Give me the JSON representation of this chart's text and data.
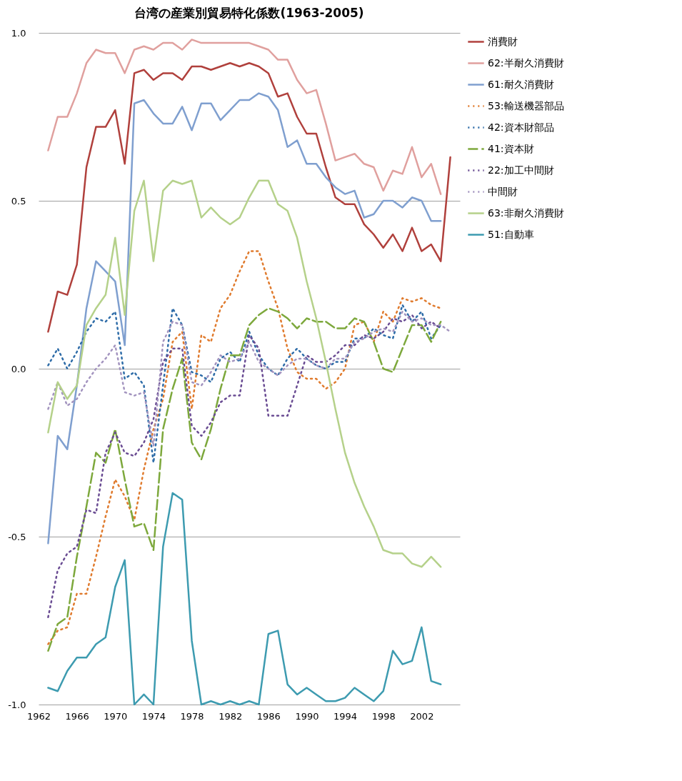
{
  "chart_data": {
    "type": "line",
    "title": "台湾の産業別貿易特化係数(1963-2005)",
    "x": [
      1963,
      1964,
      1965,
      1966,
      1967,
      1968,
      1969,
      1970,
      1971,
      1972,
      1973,
      1974,
      1975,
      1976,
      1977,
      1978,
      1979,
      1980,
      1981,
      1982,
      1983,
      1984,
      1985,
      1986,
      1987,
      1988,
      1989,
      1990,
      1991,
      1992,
      1993,
      1994,
      1995,
      1996,
      1997,
      1998,
      1999,
      2000,
      2001,
      2002,
      2003,
      2004,
      2005
    ],
    "xlim": [
      1962,
      2006
    ],
    "xticks": [
      1962,
      1966,
      1970,
      1974,
      1978,
      1982,
      1986,
      1990,
      1994,
      1998,
      2002
    ],
    "ylim": [
      -1,
      1
    ],
    "yticks": [
      {
        "value": -1,
        "label": "-1.0"
      },
      {
        "value": -0.5,
        "label": "-0.5"
      },
      {
        "value": 0,
        "label": "0.0"
      },
      {
        "value": 0.5,
        "label": "0.5"
      },
      {
        "value": 1,
        "label": "1.0"
      }
    ],
    "grid": "y",
    "legend": "right",
    "marker": "none",
    "series": [
      {
        "name": "消費財",
        "color": "#b0403c",
        "line_style": "solid",
        "values": [
          0.11,
          0.23,
          0.22,
          0.31,
          0.6,
          0.72,
          0.72,
          0.77,
          0.61,
          0.88,
          0.89,
          0.86,
          0.88,
          0.88,
          0.86,
          0.9,
          0.9,
          0.89,
          0.9,
          0.91,
          0.9,
          0.91,
          0.9,
          0.88,
          0.81,
          0.82,
          0.75,
          0.7,
          0.7,
          0.6,
          0.51,
          0.49,
          0.49,
          0.43,
          0.4,
          0.36,
          0.4,
          0.35,
          0.42,
          0.35,
          0.37,
          0.32,
          0.63
        ]
      },
      {
        "name": "62:半耐久消費財",
        "color": "#e0a09e",
        "line_style": "solid",
        "values": [
          0.65,
          0.75,
          0.75,
          0.82,
          0.91,
          0.95,
          0.94,
          0.94,
          0.88,
          0.95,
          0.96,
          0.95,
          0.97,
          0.97,
          0.95,
          0.98,
          0.97,
          0.97,
          0.97,
          0.97,
          0.97,
          0.97,
          0.96,
          0.95,
          0.92,
          0.92,
          0.86,
          0.82,
          0.83,
          0.73,
          0.62,
          0.63,
          0.64,
          0.61,
          0.6,
          0.53,
          0.59,
          0.58,
          0.66,
          0.57,
          0.61,
          0.52,
          null
        ]
      },
      {
        "name": "61:耐久消費財",
        "color": "#7f9fcf",
        "line_style": "solid",
        "values": [
          -0.52,
          -0.2,
          -0.24,
          -0.05,
          0.18,
          0.32,
          0.29,
          0.26,
          0.07,
          0.79,
          0.8,
          0.76,
          0.73,
          0.73,
          0.78,
          0.71,
          0.79,
          0.79,
          0.74,
          0.77,
          0.8,
          0.8,
          0.82,
          0.81,
          0.77,
          0.66,
          0.68,
          0.61,
          0.61,
          0.57,
          0.54,
          0.52,
          0.53,
          0.45,
          0.46,
          0.5,
          0.5,
          0.48,
          0.51,
          0.5,
          0.44,
          0.44,
          null
        ]
      },
      {
        "name": "53:輸送機器部品",
        "color": "#e07b2e",
        "line_style": "dotted",
        "values": [
          -0.82,
          -0.78,
          -0.77,
          -0.67,
          -0.67,
          -0.56,
          -0.44,
          -0.33,
          -0.38,
          -0.45,
          -0.3,
          -0.18,
          -0.09,
          0.08,
          0.11,
          -0.12,
          0.1,
          0.08,
          0.18,
          0.22,
          0.29,
          0.35,
          0.35,
          0.26,
          0.18,
          0.06,
          -0.01,
          -0.03,
          -0.03,
          -0.06,
          -0.04,
          0.0,
          0.13,
          0.14,
          0.08,
          0.17,
          0.14,
          0.21,
          0.2,
          0.21,
          0.19,
          0.18,
          null
        ]
      },
      {
        "name": "42:資本財部品",
        "color": "#2e6ca8",
        "line_style": "dotted",
        "values": [
          0.01,
          0.06,
          0.0,
          0.05,
          0.11,
          0.15,
          0.14,
          0.17,
          -0.03,
          -0.01,
          -0.05,
          -0.28,
          -0.05,
          0.18,
          0.13,
          -0.01,
          -0.02,
          -0.04,
          0.03,
          0.05,
          0.02,
          0.11,
          0.04,
          0.0,
          -0.02,
          0.03,
          0.06,
          0.03,
          0.01,
          0.0,
          0.02,
          0.02,
          0.09,
          0.09,
          0.12,
          0.1,
          0.09,
          0.19,
          0.14,
          0.17,
          0.09,
          0.13,
          null
        ]
      },
      {
        "name": "41:資本財",
        "color": "#7da83c",
        "line_style": "dashed",
        "values": [
          -0.84,
          -0.76,
          -0.74,
          -0.56,
          -0.41,
          -0.25,
          -0.28,
          -0.18,
          -0.33,
          -0.47,
          -0.46,
          -0.54,
          -0.18,
          -0.06,
          0.03,
          -0.22,
          -0.27,
          -0.18,
          -0.06,
          0.04,
          0.04,
          0.13,
          0.16,
          0.18,
          0.17,
          0.15,
          0.12,
          0.15,
          0.14,
          0.14,
          0.12,
          0.12,
          0.15,
          0.14,
          0.08,
          0.0,
          -0.01,
          0.06,
          0.13,
          0.13,
          0.08,
          0.14,
          null
        ]
      },
      {
        "name": "22:加工中間財",
        "color": "#6a4c93",
        "line_style": "dotted",
        "values": [
          -0.74,
          -0.6,
          -0.55,
          -0.53,
          -0.42,
          -0.43,
          -0.25,
          -0.19,
          -0.25,
          -0.26,
          -0.22,
          -0.15,
          0.02,
          0.06,
          0.06,
          -0.17,
          -0.2,
          -0.16,
          -0.1,
          -0.08,
          -0.08,
          0.1,
          0.06,
          -0.14,
          -0.14,
          -0.14,
          -0.05,
          0.04,
          0.02,
          0.02,
          0.04,
          0.07,
          0.07,
          0.1,
          0.09,
          0.11,
          0.15,
          0.14,
          0.16,
          0.12,
          0.14,
          0.12,
          null
        ]
      },
      {
        "name": "中間財",
        "color": "#a394bf",
        "line_style": "dotted",
        "values": [
          -0.12,
          -0.04,
          -0.11,
          -0.09,
          -0.04,
          0.0,
          0.03,
          0.07,
          -0.07,
          -0.08,
          -0.07,
          -0.23,
          0.08,
          0.14,
          0.13,
          -0.04,
          -0.05,
          -0.01,
          0.04,
          0.02,
          0.03,
          0.08,
          0.02,
          0.0,
          -0.02,
          0.01,
          0.03,
          0.03,
          0.01,
          0.0,
          0.03,
          0.03,
          0.08,
          0.09,
          0.11,
          0.12,
          0.11,
          0.17,
          0.14,
          0.15,
          0.13,
          0.13,
          0.11
        ]
      },
      {
        "name": "63:非耐久消費財",
        "color": "#b5d18a",
        "line_style": "solid",
        "values": [
          -0.19,
          -0.04,
          -0.09,
          -0.05,
          0.13,
          0.18,
          0.22,
          0.39,
          0.16,
          0.47,
          0.56,
          0.32,
          0.53,
          0.56,
          0.55,
          0.56,
          0.45,
          0.48,
          0.45,
          0.43,
          0.45,
          0.51,
          0.56,
          0.56,
          0.49,
          0.47,
          0.39,
          0.26,
          0.15,
          0.02,
          -0.12,
          -0.25,
          -0.34,
          -0.41,
          -0.47,
          -0.54,
          -0.55,
          -0.55,
          -0.58,
          -0.59,
          -0.56,
          -0.59,
          null
        ]
      },
      {
        "name": "51:自動車",
        "color": "#3d9bb0",
        "line_style": "solid",
        "values": [
          -0.95,
          -0.96,
          -0.9,
          -0.86,
          -0.86,
          -0.82,
          -0.8,
          -0.65,
          -0.57,
          -1.0,
          -0.97,
          -1.0,
          -0.53,
          -0.37,
          -0.39,
          -0.81,
          -1.0,
          -0.99,
          -1.0,
          -0.99,
          -1.0,
          -0.99,
          -1.0,
          -0.79,
          -0.78,
          -0.94,
          -0.97,
          -0.95,
          -0.97,
          -0.99,
          -0.99,
          -0.98,
          -0.95,
          -0.97,
          -0.99,
          -0.96,
          -0.84,
          -0.88,
          -0.87,
          -0.77,
          -0.93,
          -0.94,
          null
        ]
      }
    ]
  }
}
